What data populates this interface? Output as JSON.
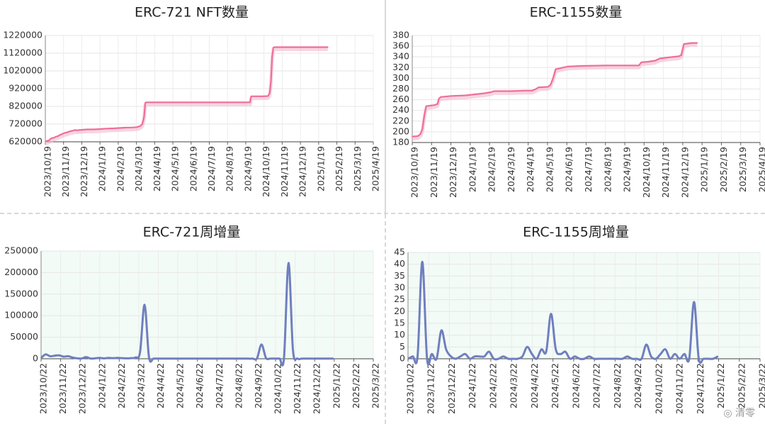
{
  "chart_data": [
    {
      "type": "line",
      "title": "ERC-721 NFT数量",
      "color": "#ee6e9a",
      "background": "#ffffff",
      "ylim": [
        620000,
        1220000
      ],
      "yticks": [
        "1220000",
        "1120000",
        "1020000",
        "920000",
        "820000",
        "720000",
        "620000"
      ],
      "xlim": [
        "2023-10-19",
        "2025-04-19"
      ],
      "xticks": [
        "2023/10/19",
        "2023/11/19",
        "2023/12/19",
        "2024/1/19",
        "2024/2/19",
        "2024/3/19",
        "2024/4/19",
        "2024/5/19",
        "2024/6/19",
        "2024/7/19",
        "2024/8/19",
        "2024/9/19",
        "2024/10/19",
        "2024/11/19",
        "2024/12/19",
        "2025/1/19",
        "2025/2/19",
        "2025/3/19",
        "2025/4/19"
      ],
      "x": [
        "2023-10-19",
        "2023-10-22",
        "2023-10-26",
        "2023-10-29",
        "2023-11-02",
        "2023-11-05",
        "2023-11-09",
        "2023-11-12",
        "2023-11-16",
        "2023-11-20",
        "2023-11-24",
        "2023-11-27",
        "2023-11-30",
        "2023-12-04",
        "2023-12-08",
        "2023-12-11",
        "2023-12-14",
        "2023-12-20",
        "2023-12-28",
        "2024-01-08",
        "2024-01-19",
        "2024-01-30",
        "2024-02-10",
        "2024-02-20",
        "2024-03-01",
        "2024-03-12",
        "2024-03-20",
        "2024-03-26",
        "2024-03-29",
        "2024-04-01",
        "2024-04-03",
        "2024-04-05",
        "2024-04-19",
        "2024-05-19",
        "2024-06-19",
        "2024-07-19",
        "2024-08-19",
        "2024-09-19",
        "2024-09-25",
        "2024-09-27",
        "2024-10-05",
        "2024-10-15",
        "2024-10-25",
        "2024-10-28",
        "2024-10-30",
        "2024-11-01",
        "2024-11-03",
        "2024-11-05",
        "2024-11-19",
        "2024-12-19",
        "2025-01-19",
        "2025-02-02"
      ],
      "y": [
        622000,
        625000,
        630000,
        640000,
        643000,
        648000,
        652000,
        658000,
        664000,
        670000,
        673000,
        677000,
        680000,
        683000,
        687000,
        685000,
        686000,
        688000,
        690000,
        690000,
        692000,
        695000,
        696000,
        698000,
        700000,
        701000,
        703000,
        710000,
        720000,
        760000,
        840000,
        843000,
        843000,
        843000,
        843000,
        843000,
        843000,
        843000,
        843000,
        877000,
        877000,
        877000,
        878000,
        895000,
        960000,
        1100000,
        1152000,
        1154000,
        1154000,
        1154000,
        1154000,
        1154000
      ]
    },
    {
      "type": "line",
      "title": "ERC-1155数量",
      "color": "#ee6e9a",
      "background": "#ffffff",
      "ylim": [
        180,
        380
      ],
      "yticks": [
        "380",
        "360",
        "340",
        "320",
        "300",
        "280",
        "260",
        "240",
        "220",
        "200",
        "180"
      ],
      "xlim": [
        "2023-10-19",
        "2025-04-19"
      ],
      "xticks": [
        "2023/10/19",
        "2023/11/19",
        "2023/12/19",
        "2024/1/19",
        "2024/2/19",
        "2024/3/19",
        "2024/4/19",
        "2024/5/19",
        "2024/6/19",
        "2024/7/19",
        "2024/8/19",
        "2024/9/19",
        "2024/10/19",
        "2024/11/19",
        "2024/12/19",
        "2025/1/19",
        "2025/2/19",
        "2025/3/19",
        "2025/4/19"
      ],
      "x": [
        "2023-10-19",
        "2023-10-28",
        "2023-11-01",
        "2023-11-04",
        "2023-11-07",
        "2023-11-10",
        "2023-11-17",
        "2023-11-23",
        "2023-11-28",
        "2023-11-30",
        "2023-12-03",
        "2023-12-20",
        "2024-01-10",
        "2024-01-25",
        "2024-02-10",
        "2024-02-20",
        "2024-02-25",
        "2024-03-20",
        "2024-04-15",
        "2024-04-25",
        "2024-05-01",
        "2024-05-05",
        "2024-05-20",
        "2024-05-24",
        "2024-05-28",
        "2024-06-01",
        "2024-06-05",
        "2024-06-20",
        "2024-07-10",
        "2024-08-19",
        "2024-09-19",
        "2024-10-10",
        "2024-10-14",
        "2024-10-25",
        "2024-11-05",
        "2024-11-12",
        "2024-11-25",
        "2024-12-12",
        "2024-12-16",
        "2024-12-20",
        "2025-01-01",
        "2025-01-10"
      ],
      "y": [
        191,
        192,
        196,
        205,
        230,
        248,
        249,
        250,
        252,
        262,
        265,
        267,
        268,
        270,
        272,
        274,
        276,
        276,
        277,
        277,
        280,
        283,
        284,
        288,
        300,
        317,
        318,
        322,
        323,
        324,
        324,
        324,
        330,
        331,
        333,
        337,
        339,
        341,
        343,
        364,
        366,
        366
      ]
    },
    {
      "type": "area",
      "title": "ERC-721周增量",
      "color": "#6f7fbf",
      "background": "#f3fbf6",
      "ylim": [
        0,
        250000
      ],
      "yticks": [
        "250000",
        "200000",
        "150000",
        "100000",
        "50000",
        "0"
      ],
      "xlim": [
        "2023-10-22",
        "2025-03-22"
      ],
      "xticks": [
        "2023/10/22",
        "2023/11/22",
        "2023/12/22",
        "2024/1/22",
        "2024/2/22",
        "2024/3/22",
        "2024/4/22",
        "2024/5/22",
        "2024/6/22",
        "2024/7/22",
        "2024/8/22",
        "2024/9/22",
        "2024/10/22",
        "2024/11/22",
        "2024/12/22",
        "2025/1/22",
        "2025/2/22",
        "2025/3/22"
      ],
      "x": [
        "2023-10-22",
        "2023-10-29",
        "2023-11-05",
        "2023-11-12",
        "2023-11-19",
        "2023-11-26",
        "2023-12-03",
        "2023-12-10",
        "2023-12-17",
        "2023-12-24",
        "2023-12-31",
        "2024-01-07",
        "2024-01-14",
        "2024-01-21",
        "2024-01-28",
        "2024-02-04",
        "2024-02-11",
        "2024-02-18",
        "2024-02-25",
        "2024-03-03",
        "2024-03-10",
        "2024-03-17",
        "2024-03-24",
        "2024-03-31",
        "2024-04-07",
        "2024-04-14",
        "2024-04-21",
        "2024-04-28",
        "2024-05-05",
        "2024-05-12",
        "2024-05-19",
        "2024-05-26",
        "2024-06-02",
        "2024-06-09",
        "2024-06-16",
        "2024-06-23",
        "2024-06-30",
        "2024-07-07",
        "2024-07-14",
        "2024-07-21",
        "2024-07-28",
        "2024-08-04",
        "2024-08-11",
        "2024-08-18",
        "2024-08-25",
        "2024-09-01",
        "2024-09-08",
        "2024-09-15",
        "2024-09-22",
        "2024-09-29",
        "2024-10-06",
        "2024-10-13",
        "2024-10-20",
        "2024-10-27",
        "2024-11-03",
        "2024-11-10",
        "2024-11-17",
        "2024-11-24",
        "2024-12-01",
        "2024-12-08",
        "2024-12-15",
        "2024-12-22",
        "2024-12-29",
        "2025-01-05",
        "2025-01-12",
        "2025-01-19"
      ],
      "y": [
        2000,
        10000,
        6000,
        7000,
        8000,
        5000,
        6000,
        3000,
        1000,
        500,
        4000,
        500,
        1000,
        2000,
        1000,
        2000,
        1500,
        2000,
        1500,
        1000,
        1500,
        3000,
        15000,
        125000,
        3000,
        500,
        500,
        300,
        300,
        300,
        300,
        300,
        300,
        300,
        300,
        300,
        300,
        300,
        300,
        300,
        300,
        300,
        300,
        300,
        300,
        300,
        300,
        300,
        1000,
        33000,
        2000,
        500,
        500,
        500,
        1000,
        222000,
        20000,
        500,
        300,
        300,
        300,
        300,
        300,
        300,
        300,
        300
      ]
    },
    {
      "type": "area",
      "title": "ERC-1155周增量",
      "color": "#6f7fbf",
      "background": "#f3fbf6",
      "ylim": [
        0,
        45
      ],
      "yticks": [
        "45",
        "40",
        "35",
        "30",
        "25",
        "20",
        "15",
        "10",
        "5",
        "0"
      ],
      "xlim": [
        "2023-10-22",
        "2025-03-22"
      ],
      "xticks": [
        "2023/10/22",
        "2023/11/22",
        "2023/12/22",
        "2024/1/22",
        "2024/2/22",
        "2024/3/22",
        "2024/4/22",
        "2024/5/22",
        "2024/6/22",
        "2024/7/22",
        "2024/8/22",
        "2024/9/22",
        "2024/10/22",
        "2024/11/22",
        "2024/12/22",
        "2025/1/22",
        "2025/2/22",
        "2025/3/22"
      ],
      "x": [
        "2023-10-22",
        "2023-10-29",
        "2023-11-05",
        "2023-11-12",
        "2023-11-19",
        "2023-11-26",
        "2023-12-03",
        "2023-12-10",
        "2023-12-17",
        "2023-12-24",
        "2023-12-31",
        "2024-01-07",
        "2024-01-14",
        "2024-01-21",
        "2024-01-28",
        "2024-02-04",
        "2024-02-11",
        "2024-02-18",
        "2024-02-25",
        "2024-03-03",
        "2024-03-10",
        "2024-03-17",
        "2024-03-24",
        "2024-03-31",
        "2024-04-07",
        "2024-04-14",
        "2024-04-21",
        "2024-04-28",
        "2024-05-05",
        "2024-05-12",
        "2024-05-19",
        "2024-05-26",
        "2024-06-02",
        "2024-06-09",
        "2024-06-16",
        "2024-06-23",
        "2024-06-30",
        "2024-07-07",
        "2024-07-14",
        "2024-07-21",
        "2024-07-28",
        "2024-08-04",
        "2024-08-11",
        "2024-08-18",
        "2024-08-25",
        "2024-09-01",
        "2024-09-08",
        "2024-09-15",
        "2024-09-22",
        "2024-09-29",
        "2024-10-06",
        "2024-10-13",
        "2024-10-20",
        "2024-10-27",
        "2024-11-03",
        "2024-11-10",
        "2024-11-17",
        "2024-11-24",
        "2024-12-01",
        "2024-12-08",
        "2024-12-15",
        "2024-12-22",
        "2024-12-29",
        "2025-01-05",
        "2025-01-12",
        "2025-01-19"
      ],
      "y": [
        0,
        1,
        1,
        41,
        0,
        2,
        0,
        12,
        4,
        1,
        0,
        1,
        2,
        0,
        1,
        1,
        1,
        3,
        0,
        0,
        1,
        0,
        0,
        0,
        1,
        5,
        2,
        0,
        4,
        3,
        19,
        4,
        2,
        3,
        0,
        1,
        0,
        0,
        1,
        0,
        0,
        0,
        0,
        0,
        0,
        0,
        1,
        0,
        0,
        0,
        6,
        1,
        0,
        2,
        4,
        0,
        2,
        0,
        2,
        0,
        24,
        0,
        0,
        0,
        0,
        1
      ]
    }
  ],
  "watermark": "清零"
}
